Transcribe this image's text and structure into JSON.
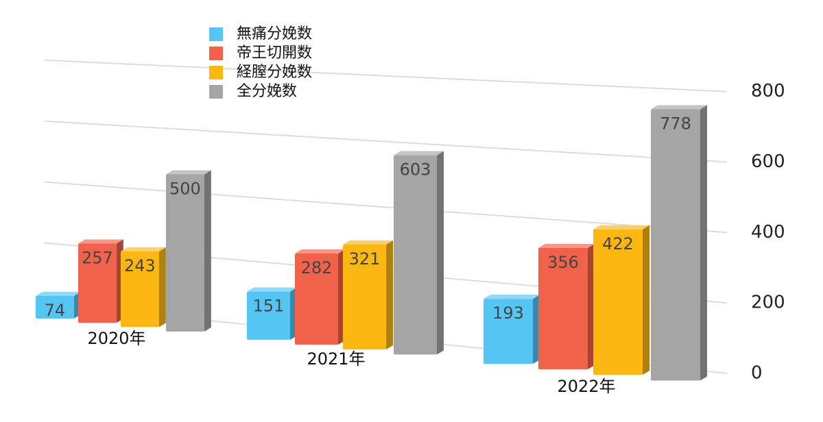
{
  "chart_data": {
    "type": "bar",
    "categories": [
      "2020年",
      "2021年",
      "2022年"
    ],
    "series": [
      {
        "name": "無痛分娩数",
        "color": "#55c5f3",
        "values": [
          74,
          151,
          193
        ]
      },
      {
        "name": "帝王切開数",
        "color": "#f1624a",
        "values": [
          257,
          282,
          356
        ]
      },
      {
        "name": "経膣分娩数",
        "color": "#fcb712",
        "values": [
          243,
          321,
          422
        ]
      },
      {
        "name": "全分娩数",
        "color": "#a5a5a5",
        "values": [
          500,
          603,
          778
        ]
      }
    ],
    "ylim": [
      0,
      800
    ],
    "yticks": [
      0,
      200,
      400,
      600,
      800
    ],
    "grid": true,
    "legend": "top-left"
  }
}
